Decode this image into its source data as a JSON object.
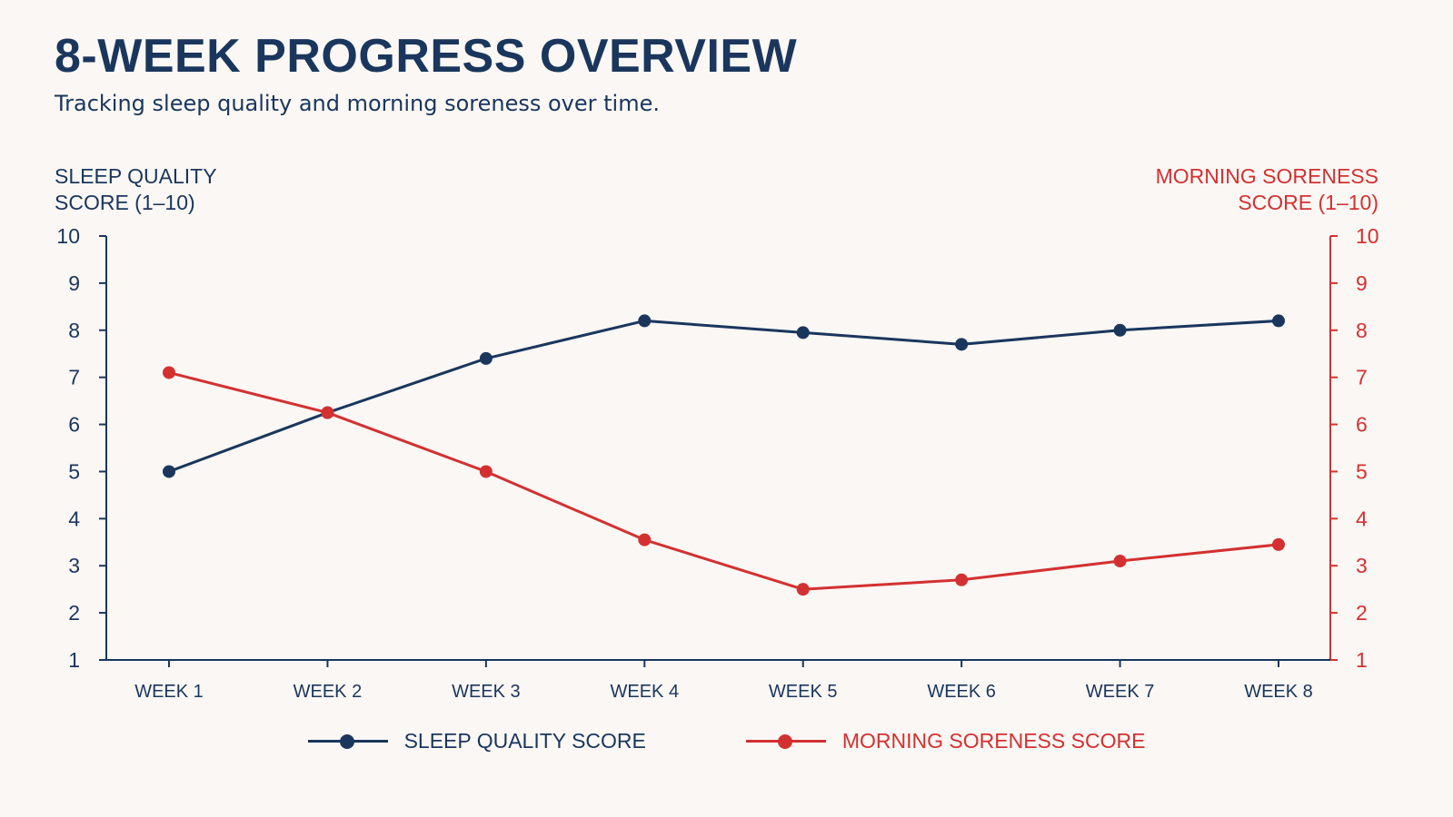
{
  "title": "8-WEEK PROGRESS OVERVIEW",
  "subtitle": "Tracking sleep quality and morning soreness over time.",
  "colors": {
    "sleep": "#1a365d",
    "soreness": "#d33131",
    "background": "#faf7f4"
  },
  "chart_data": {
    "type": "line",
    "categories": [
      "WEEK 1",
      "WEEK 2",
      "WEEK 3",
      "WEEK 4",
      "WEEK 5",
      "WEEK 6",
      "WEEK 7",
      "WEEK 8"
    ],
    "series": [
      {
        "name": "SLEEP QUALITY SCORE",
        "axis": "left",
        "color": "#1a365d",
        "values": [
          5.0,
          6.25,
          7.4,
          8.2,
          7.95,
          7.7,
          8.0,
          8.2
        ]
      },
      {
        "name": "MORNING SORENESS SCORE",
        "axis": "right",
        "color": "#d33131",
        "values": [
          7.1,
          6.25,
          5.0,
          3.55,
          2.5,
          2.7,
          3.1,
          3.45
        ]
      }
    ],
    "ylabel_left": [
      "SLEEP QUALITY",
      "SCORE (1–10)"
    ],
    "ylabel_right": [
      "MORNING SORENESS",
      "SCORE (1–10)"
    ],
    "ylim_left": [
      1,
      10
    ],
    "ylim_right": [
      1,
      10
    ],
    "yticks": [
      1,
      2,
      3,
      4,
      5,
      6,
      7,
      8,
      9,
      10
    ],
    "grid": false,
    "legend_position": "bottom-center"
  }
}
